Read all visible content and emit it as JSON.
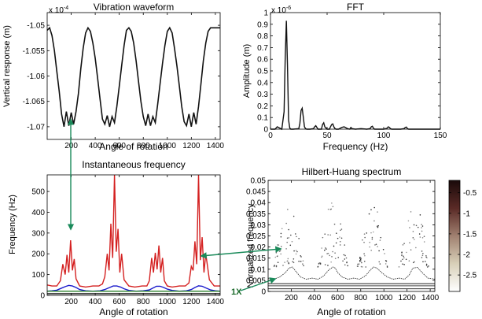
{
  "chart_data": [
    {
      "type": "line",
      "title": "Vibration waveform",
      "xlabel": "Angle of rotation",
      "ylabel": "Vertical response (m)",
      "y_exponent": "x 10",
      "y_exponent_power": "-4",
      "xlim": [
        0,
        1440
      ],
      "ylim": [
        -1.0725,
        -1.0475
      ],
      "xticks": [
        "200",
        "400",
        "600",
        "800",
        "1000",
        "1200",
        "1400"
      ],
      "yticks": [
        "-1.05",
        "-1.055",
        "-1.06",
        "-1.065",
        "-1.07"
      ],
      "color": "#111111",
      "series": [
        {
          "x": [
            0,
            20,
            40,
            60,
            80,
            100,
            120,
            140,
            160,
            180,
            200,
            220,
            240,
            260,
            280,
            300,
            320,
            340,
            360,
            380,
            400,
            420,
            440,
            460,
            480,
            500,
            520,
            540,
            560,
            580,
            600,
            620,
            640,
            660,
            680,
            700,
            720,
            740,
            760,
            780,
            800,
            820,
            840,
            860,
            880,
            900,
            920,
            940,
            960,
            980,
            1000,
            1020,
            1040,
            1060,
            1080,
            1100,
            1120,
            1140,
            1160,
            1180,
            1200,
            1220,
            1240,
            1260,
            1280,
            1300,
            1320,
            1340,
            1360,
            1380,
            1400,
            1420,
            1440
          ],
          "y": [
            -1.051,
            -1.0505,
            -1.052,
            -1.055,
            -1.059,
            -1.063,
            -1.0675,
            -1.07,
            -1.067,
            -1.0698,
            -1.0672,
            -1.0695,
            -1.067,
            -1.0635,
            -1.0585,
            -1.0545,
            -1.0515,
            -1.0505,
            -1.0512,
            -1.0535,
            -1.0565,
            -1.0605,
            -1.0645,
            -1.0685,
            -1.0695,
            -1.0678,
            -1.07,
            -1.068,
            -1.0692,
            -1.066,
            -1.062,
            -1.058,
            -1.054,
            -1.051,
            -1.0505,
            -1.0512,
            -1.0535,
            -1.057,
            -1.061,
            -1.065,
            -1.068,
            -1.0698,
            -1.0675,
            -1.0698,
            -1.068,
            -1.0692,
            -1.0655,
            -1.0615,
            -1.0575,
            -1.054,
            -1.0512,
            -1.0505,
            -1.0515,
            -1.0545,
            -1.058,
            -1.062,
            -1.066,
            -1.069,
            -1.0698,
            -1.0675,
            -1.07,
            -1.0672,
            -1.0695,
            -1.066,
            -1.0615,
            -1.057,
            -1.0535,
            -1.0512,
            -1.0505,
            -1.0505,
            -1.0505,
            -1.0505,
            -1.0505
          ]
        }
      ]
    },
    {
      "type": "line",
      "title": "FFT",
      "xlabel": "Frequency (Hz)",
      "ylabel": "Amplitude (m)",
      "y_exponent": "x 10",
      "y_exponent_power": "-6",
      "xlim": [
        0,
        150
      ],
      "ylim": [
        0,
        1
      ],
      "xticks": [
        "0",
        "50",
        "100",
        "150"
      ],
      "yticks": [
        "0",
        "0.1",
        "0.2",
        "0.3",
        "0.4",
        "0.5",
        "0.6",
        "0.7",
        "0.8",
        "0.9",
        "1"
      ],
      "color": "#111111",
      "series": [
        {
          "x": [
            0,
            2,
            4,
            5,
            6,
            8,
            10,
            12,
            13,
            14,
            15,
            16,
            17,
            18,
            20,
            25,
            26,
            27,
            28,
            29,
            30,
            31,
            32,
            35,
            38,
            39,
            40,
            41,
            42,
            45,
            46,
            47,
            48,
            50,
            52,
            53,
            54,
            55,
            56,
            57,
            58,
            60,
            63,
            65,
            68,
            70,
            71,
            72,
            75,
            80,
            85,
            88,
            89,
            90,
            91,
            92,
            95,
            100,
            103,
            104,
            105,
            106,
            107,
            110,
            115,
            118,
            119,
            120,
            121,
            122,
            125,
            130,
            135,
            140,
            145,
            150
          ],
          "y": [
            0,
            0,
            0,
            0.01,
            0.02,
            0.01,
            0,
            0.15,
            0.6,
            0.93,
            0.55,
            0.08,
            0.01,
            0,
            0,
            0.005,
            0.05,
            0.16,
            0.18,
            0.1,
            0.02,
            0.005,
            0,
            0,
            0.005,
            0.02,
            0.03,
            0.015,
            0,
            0,
            0.04,
            0.055,
            0.02,
            0,
            0,
            0.02,
            0.04,
            0.045,
            0.02,
            0.005,
            0,
            0,
            0.015,
            0.02,
            0.005,
            0,
            0.015,
            0.005,
            0,
            0.005,
            0,
            0.005,
            0.02,
            0.025,
            0.008,
            0,
            0,
            0,
            0.008,
            0.02,
            0.015,
            0.005,
            0,
            0,
            0,
            0.005,
            0.015,
            0.018,
            0.005,
            0,
            0,
            0,
            0,
            0,
            0,
            0
          ]
        }
      ]
    },
    {
      "type": "line",
      "title": "Instantaneous frequency",
      "xlabel": "Angle of rotation",
      "ylabel": "Frequency (Hz)",
      "xlim": [
        0,
        1440
      ],
      "ylim": [
        0,
        580
      ],
      "xticks": [
        "200",
        "400",
        "600",
        "800",
        "1000",
        "1200",
        "1400"
      ],
      "yticks": [
        "0",
        "100",
        "200",
        "300",
        "400",
        "500"
      ],
      "series": [
        {
          "color": "#d42020",
          "x": [
            0,
            40,
            80,
            110,
            130,
            150,
            165,
            180,
            195,
            210,
            225,
            240,
            270,
            320,
            380,
            430,
            460,
            480,
            500,
            515,
            530,
            545,
            560,
            575,
            590,
            605,
            620,
            640,
            680,
            730,
            790,
            830,
            850,
            870,
            885,
            900,
            915,
            930,
            945,
            960,
            975,
            1000,
            1040,
            1100,
            1150,
            1180,
            1200,
            1215,
            1230,
            1245,
            1260,
            1275,
            1290,
            1305,
            1320,
            1350,
            1390,
            1440
          ],
          "y": [
            50,
            45,
            45,
            70,
            150,
            100,
            195,
            110,
            265,
            120,
            175,
            80,
            45,
            40,
            45,
            45,
            55,
            90,
            200,
            120,
            345,
            180,
            580,
            210,
            320,
            110,
            200,
            75,
            45,
            40,
            45,
            45,
            70,
            180,
            110,
            205,
            125,
            240,
            110,
            180,
            70,
            45,
            40,
            45,
            45,
            60,
            140,
            120,
            260,
            150,
            580,
            170,
            280,
            110,
            200,
            75,
            45,
            45
          ]
        },
        {
          "color": "#1a1acc",
          "x": [
            0,
            40,
            80,
            120,
            150,
            180,
            210,
            240,
            270,
            320,
            380,
            440,
            480,
            520,
            550,
            580,
            610,
            640,
            680,
            740,
            800,
            850,
            880,
            910,
            940,
            970,
            1000,
            1040,
            1100,
            1160,
            1200,
            1230,
            1260,
            1290,
            1320,
            1360,
            1400,
            1440
          ],
          "y": [
            20,
            22,
            25,
            35,
            42,
            48,
            45,
            38,
            28,
            22,
            20,
            22,
            28,
            38,
            45,
            45,
            40,
            32,
            24,
            20,
            22,
            26,
            35,
            44,
            44,
            38,
            30,
            24,
            20,
            22,
            28,
            38,
            46,
            44,
            36,
            26,
            22,
            20
          ]
        },
        {
          "color": "#2a7f2a",
          "x": [
            0,
            200,
            400,
            600,
            800,
            1000,
            1200,
            1440
          ],
          "y": [
            20,
            20,
            20,
            20,
            20,
            20,
            20,
            20
          ]
        },
        {
          "color": "#111111",
          "x": [
            0,
            1440
          ],
          "y": [
            8,
            8
          ]
        }
      ]
    },
    {
      "type": "scatter",
      "title": "Hilbert-Huang spectrum",
      "xlabel": "Angle of rotation",
      "ylabel": "Normalized frequency",
      "xlim": [
        0,
        1440
      ],
      "ylim": [
        0,
        0.05
      ],
      "xticks": [
        "200",
        "400",
        "600",
        "800",
        "1000",
        "1200",
        "1400"
      ],
      "yticks": [
        "0",
        "0.005",
        "0.01",
        "0.015",
        "0.02",
        "0.025",
        "0.03",
        "0.035",
        "0.04",
        "0.045",
        "0.05"
      ],
      "colorbar_ticks": [
        "-0.5",
        "-1",
        "-1.5",
        "-2",
        "-2.5"
      ],
      "colorbar_range": [
        -2.9,
        -0.2
      ],
      "annotation": "1X",
      "lines": [
        {
          "x": [
            0,
            1440
          ],
          "y": [
            0.0035,
            0.0035
          ],
          "color": "#222222"
        },
        {
          "x": [
            0,
            1440
          ],
          "y": [
            0.0025,
            0.0025
          ],
          "color": "#444444"
        },
        {
          "x": [
            0,
            1440
          ],
          "y": [
            0.0012,
            0.0012
          ],
          "color": "#333333"
        }
      ],
      "wave": {
        "x": [
          0,
          50,
          100,
          150,
          180,
          210,
          240,
          280,
          330,
          380,
          430,
          480,
          520,
          560,
          580,
          600,
          640,
          690,
          740,
          790,
          840,
          880,
          910,
          940,
          980,
          1030,
          1080,
          1130,
          1180,
          1220,
          1250,
          1290,
          1330,
          1380,
          1440
        ],
        "y": [
          0.006,
          0.0055,
          0.0065,
          0.0085,
          0.0105,
          0.011,
          0.009,
          0.0065,
          0.0055,
          0.006,
          0.0055,
          0.007,
          0.0095,
          0.011,
          0.0105,
          0.0085,
          0.0065,
          0.0055,
          0.006,
          0.0055,
          0.007,
          0.0095,
          0.011,
          0.0105,
          0.0085,
          0.0065,
          0.0055,
          0.006,
          0.0055,
          0.0075,
          0.0105,
          0.0108,
          0.0085,
          0.006,
          0.0055
        ]
      }
    }
  ]
}
